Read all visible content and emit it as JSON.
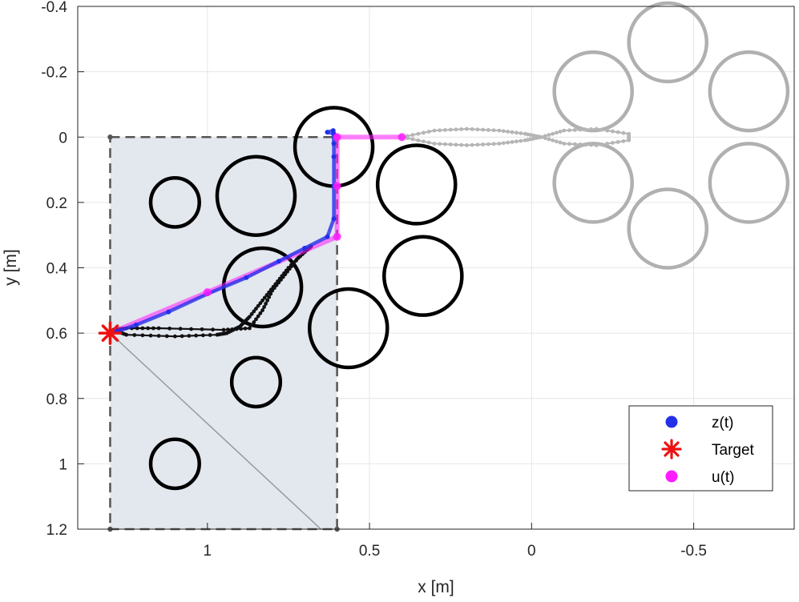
{
  "chart_data": {
    "type": "scatter",
    "title": "",
    "xlabel": "x [m]",
    "ylabel": "y [m]",
    "xlim": [
      1.4,
      -0.81
    ],
    "ylim": [
      -0.4,
      1.2
    ],
    "x_reversed": true,
    "y_reversed": true,
    "grid": true,
    "xticks": [
      1,
      0.5,
      0,
      -0.5
    ],
    "xtick_labels": [
      "1",
      "0.5",
      "0",
      "-0.5"
    ],
    "yticks": [
      -0.4,
      -0.2,
      0,
      0.2,
      0.4,
      0.6,
      0.8,
      1,
      1.2
    ],
    "ytick_labels": [
      "-0.4",
      "-0.2",
      "0",
      "0.2",
      "0.4",
      "0.6",
      "0.8",
      "1",
      "1.2"
    ],
    "workspace": {
      "x_range": [
        0.6,
        1.3
      ],
      "y_range": [
        0,
        1.2
      ],
      "fill_color": "#e3e7ee",
      "edge_color": "#555555",
      "corners": [
        [
          1.3,
          0
        ],
        [
          0.6,
          0
        ],
        [
          0.6,
          1.2
        ],
        [
          1.3,
          1.2
        ]
      ],
      "diagonal": [
        [
          1.3,
          0.6
        ],
        [
          0.65,
          1.2
        ]
      ]
    },
    "obstacles_black": [
      {
        "cx": 1.1,
        "cy": 0.2,
        "r": 0.075
      },
      {
        "cx": 0.85,
        "cy": 0.18,
        "r": 0.12
      },
      {
        "cx": 0.83,
        "cy": 0.46,
        "r": 0.12
      },
      {
        "cx": 0.85,
        "cy": 0.75,
        "r": 0.075
      },
      {
        "cx": 1.1,
        "cy": 1.0,
        "r": 0.075
      },
      {
        "cx": 0.61,
        "cy": 0.03,
        "r": 0.12
      },
      {
        "cx": 0.355,
        "cy": 0.145,
        "r": 0.12
      },
      {
        "cx": 0.335,
        "cy": 0.425,
        "r": 0.12
      },
      {
        "cx": 0.565,
        "cy": 0.585,
        "r": 0.12
      }
    ],
    "obstacles_gray": [
      {
        "cx": -0.19,
        "cy": -0.14,
        "r": 0.12
      },
      {
        "cx": -0.42,
        "cy": -0.29,
        "r": 0.12
      },
      {
        "cx": -0.67,
        "cy": -0.14,
        "r": 0.12
      },
      {
        "cx": -0.19,
        "cy": 0.14,
        "r": 0.12
      },
      {
        "cx": -0.42,
        "cy": 0.28,
        "r": 0.12
      },
      {
        "cx": -0.67,
        "cy": 0.14,
        "r": 0.12
      }
    ],
    "series": [
      {
        "name": "z(t)",
        "color": "#2430e8",
        "marker": "o",
        "x": [
          1.3,
          1.28,
          1.22,
          1.12,
          1.0,
          0.88,
          0.78,
          0.7,
          0.63,
          0.61,
          0.61,
          0.61,
          0.61,
          0.612,
          0.63,
          0.61
        ],
        "y": [
          0.6,
          0.595,
          0.575,
          0.535,
          0.48,
          0.43,
          0.38,
          0.34,
          0.305,
          0.25,
          0.15,
          0.06,
          0.02,
          -0.02,
          -0.015,
          -0.01
        ]
      },
      {
        "name": "Target",
        "color": "#ee1111",
        "marker": "*",
        "x": [
          1.3
        ],
        "y": [
          0.6
        ]
      },
      {
        "name": "u(t)",
        "color": "#ff1cff",
        "marker": "o",
        "x": [
          1.3,
          1.0,
          0.6,
          0.6,
          0.6,
          0.4
        ],
        "y": [
          0.6,
          0.475,
          0.305,
          0.15,
          0.0,
          0.0
        ]
      }
    ],
    "black_trail": {
      "x": [
        1.29,
        1.25,
        1.15,
        0.95,
        0.87,
        0.83,
        0.8,
        0.76,
        0.72,
        0.68,
        0.7,
        0.75,
        0.79,
        0.83,
        0.87,
        0.9,
        0.94,
        0.97,
        1.1,
        1.25,
        1.29
      ],
      "y": [
        0.59,
        0.585,
        0.585,
        0.59,
        0.585,
        0.53,
        0.47,
        0.42,
        0.37,
        0.335,
        0.35,
        0.4,
        0.45,
        0.5,
        0.55,
        0.58,
        0.6,
        0.605,
        0.61,
        0.605,
        0.59
      ]
    },
    "gray_trail": {
      "x": [
        0.4,
        0.3,
        0.2,
        0.1,
        0.02,
        -0.03,
        -0.1,
        -0.2,
        -0.3,
        -0.3,
        -0.2,
        -0.1,
        -0.03,
        0.02,
        0.1,
        0.2,
        0.3,
        0.4
      ],
      "y": [
        0.0,
        -0.02,
        -0.025,
        -0.02,
        -0.01,
        0.0,
        -0.02,
        -0.025,
        -0.01,
        0.01,
        0.025,
        0.02,
        0.0,
        0.01,
        0.02,
        0.025,
        0.02,
        0.0
      ]
    },
    "legend": {
      "placement": "bottom-right",
      "entries": [
        "z(t)",
        "Target",
        "u(t)"
      ]
    }
  }
}
